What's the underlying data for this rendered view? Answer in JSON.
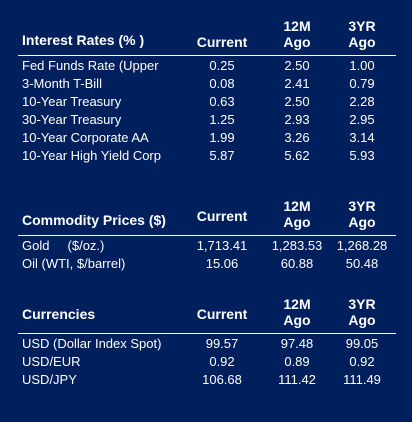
{
  "interest_rates": {
    "title": "Interest Rates (% )",
    "col_current": "Current",
    "col_12m": "12M\nAgo",
    "col_3yr": "3YR\nAgo",
    "rows": [
      {
        "label": "Fed Funds Rate (Upper",
        "current": "0.25",
        "m12": "2.50",
        "y3": "1.00"
      },
      {
        "label": "3-Month T-Bill",
        "current": "0.08",
        "m12": "2.41",
        "y3": "0.79"
      },
      {
        "label": "10-Year Treasury",
        "current": "0.63",
        "m12": "2.50",
        "y3": "2.28"
      },
      {
        "label": "30-Year Treasury",
        "current": "1.25",
        "m12": "2.93",
        "y3": "2.95"
      },
      {
        "label": "10-Year Corporate AA",
        "current": "1.99",
        "m12": "3.26",
        "y3": "3.14"
      },
      {
        "label": "10-Year High Yield Corp",
        "current": "5.87",
        "m12": "5.62",
        "y3": "5.93"
      }
    ]
  },
  "commodity_prices": {
    "title": "Commodity Prices ($)",
    "col_current": "Current",
    "col_12m": "12M\nAgo",
    "col_3yr": "3YR\nAgo",
    "rows": [
      {
        "label": "Gold     ($/oz.)",
        "current": "1,713.41",
        "m12": "1,283.53",
        "y3": "1,268.28"
      },
      {
        "label": "Oil (WTI, $/barrel)",
        "current": "15.06",
        "m12": "60.88",
        "y3": "50.48"
      }
    ]
  },
  "currencies": {
    "title": "Currencies",
    "col_current": "Current",
    "col_12m": "12M\nAgo",
    "col_3yr": "3YR\nAgo",
    "rows": [
      {
        "label": "USD (Dollar Index Spot)",
        "current": "99.57",
        "m12": "97.48",
        "y3": "99.05"
      },
      {
        "label": "USD/EUR",
        "current": "0.92",
        "m12": "0.89",
        "y3": "0.92"
      },
      {
        "label": "USD/JPY",
        "current": "106.68",
        "m12": "111.42",
        "y3": "111.49"
      }
    ]
  },
  "colors": {
    "background": "#00205d",
    "text": "#ffffff"
  }
}
